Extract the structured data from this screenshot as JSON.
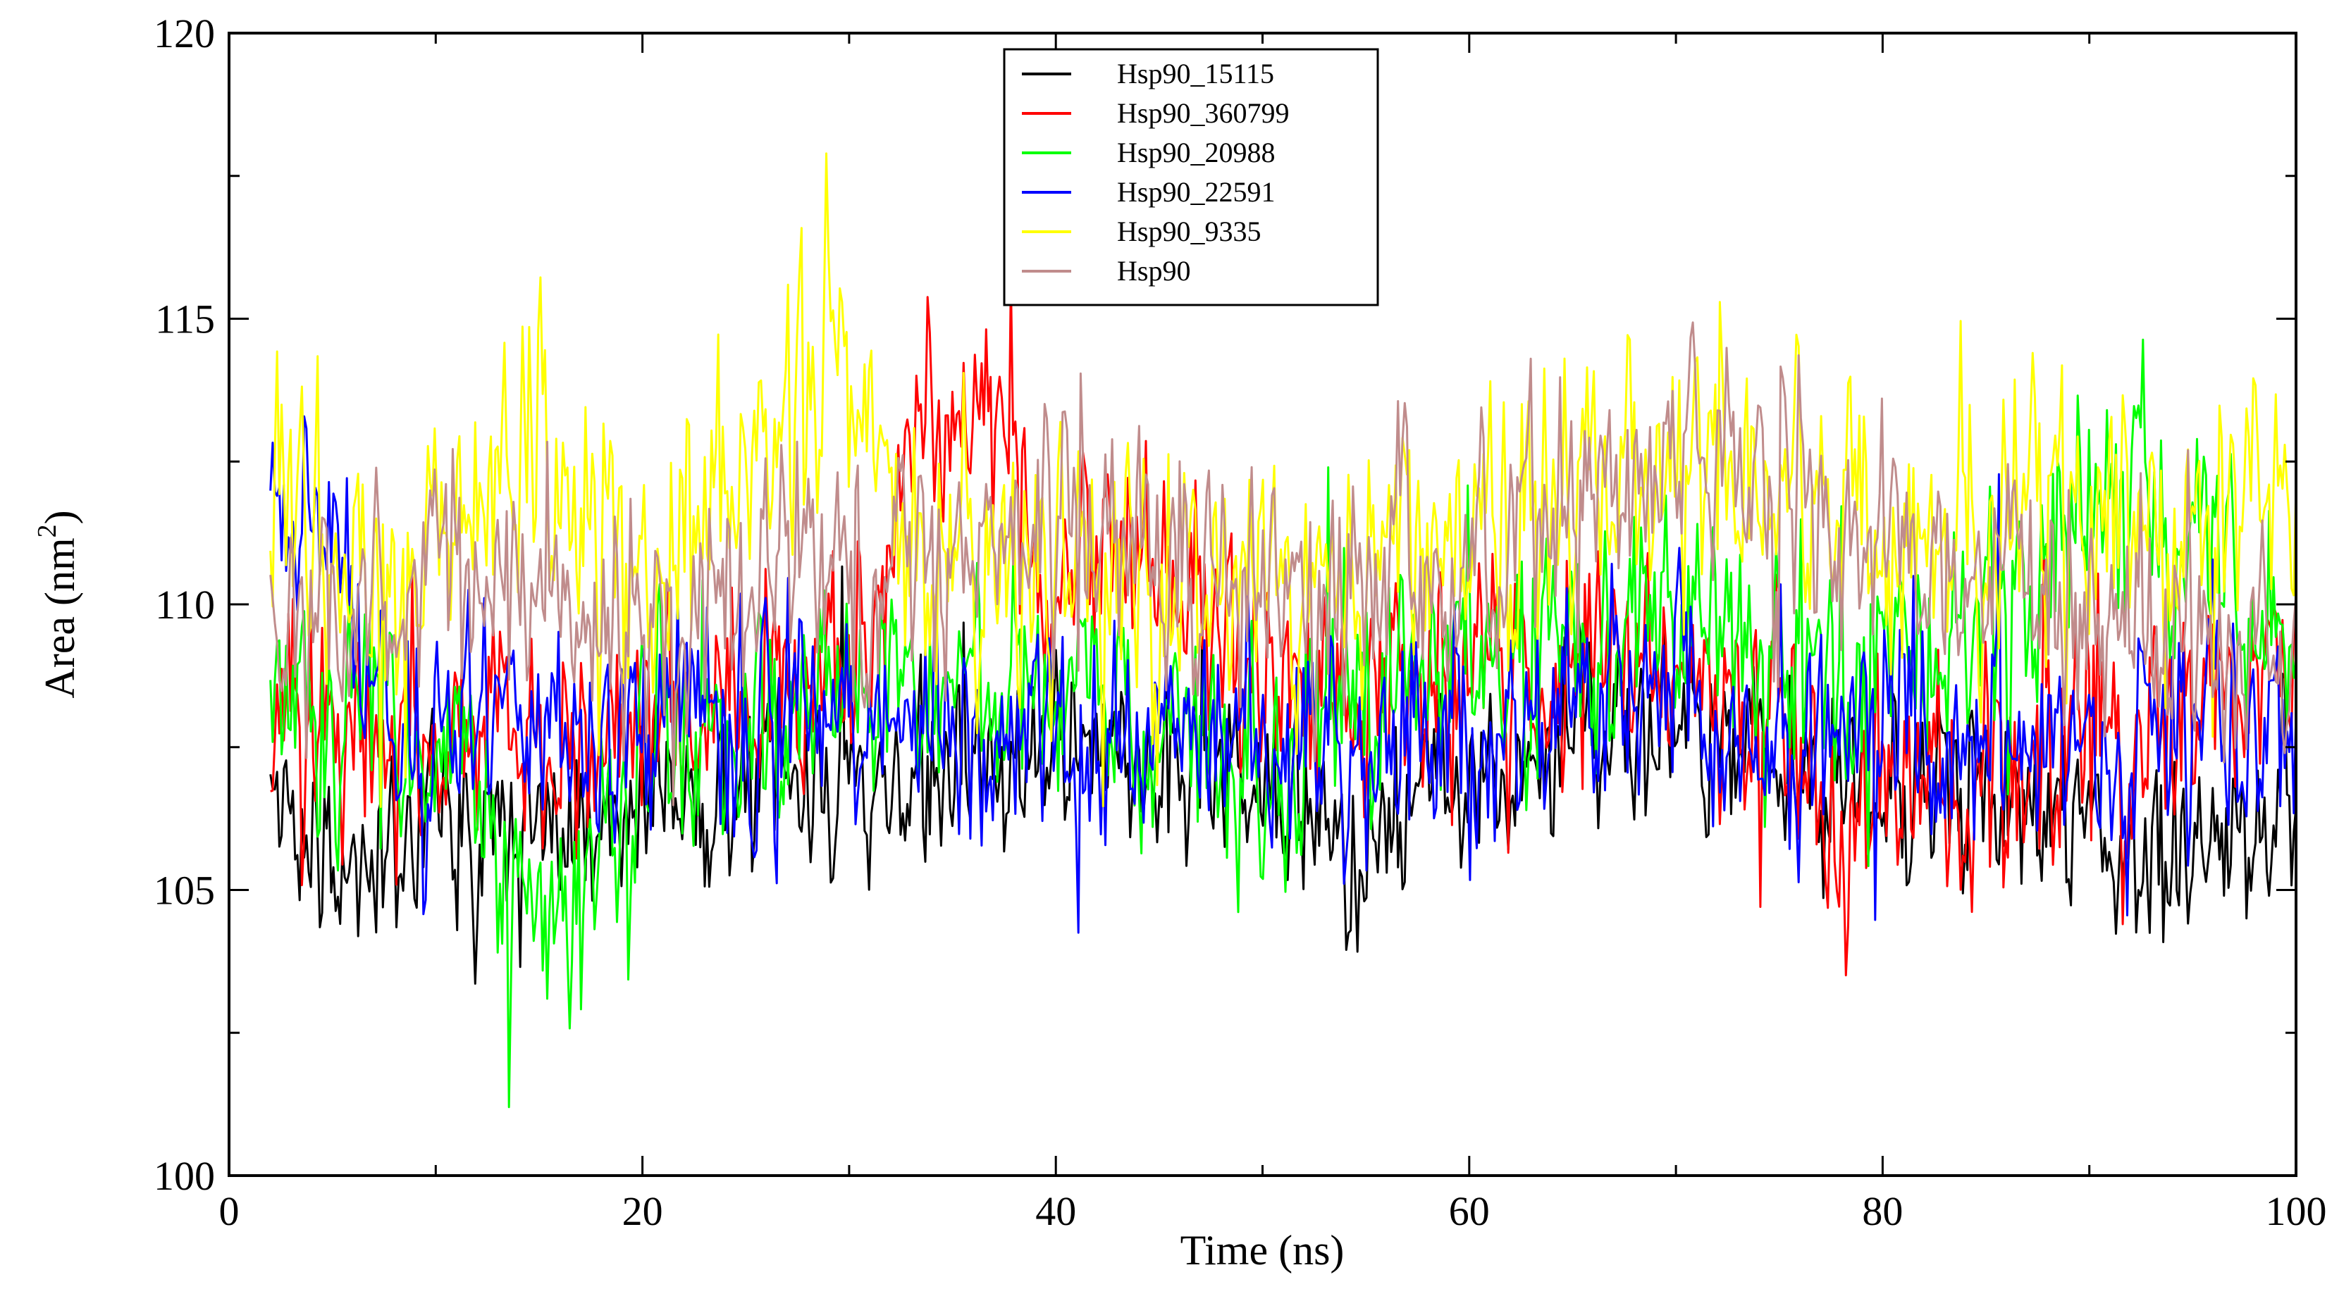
{
  "chart_data": {
    "type": "line",
    "title": "",
    "xlabel": "Time (ns)",
    "ylabel": "Area (nm",
    "ylabel_sup": "2",
    "ylabel_close": ")",
    "xlim": [
      0,
      100
    ],
    "ylim": [
      100,
      120
    ],
    "x_ticks": [
      0,
      20,
      40,
      60,
      80,
      100
    ],
    "y_ticks": [
      100,
      105,
      110,
      115,
      120
    ],
    "x_tick_labels": [
      "0",
      "20",
      "40",
      "60",
      "80",
      "100"
    ],
    "y_tick_labels": [
      "100",
      "105",
      "110",
      "115",
      "120"
    ],
    "x_start": 2,
    "samples": 900,
    "legend_position": "top-center",
    "series": [
      {
        "name": "Hsp90_15115",
        "color": "#000000",
        "seed": 11,
        "noise": 0.75,
        "anchors_x": [
          2,
          5,
          10,
          15,
          20,
          30,
          40,
          50,
          53,
          60,
          70,
          80,
          90,
          93,
          95,
          100
        ],
        "anchors_y": [
          106.8,
          105.3,
          106.4,
          106.6,
          106.6,
          106.9,
          107.4,
          106.9,
          105.6,
          107.1,
          107.9,
          106.6,
          106.5,
          105.2,
          105.6,
          106.8
        ]
      },
      {
        "name": "Hsp90_360799",
        "color": "#ff0000",
        "seed": 23,
        "noise": 0.9,
        "anchors_x": [
          2,
          10,
          20,
          30,
          33,
          36,
          38,
          40,
          45,
          50,
          60,
          70,
          75,
          78,
          85,
          90,
          100
        ],
        "anchors_y": [
          108.0,
          107.6,
          107.8,
          108.6,
          112.2,
          113.9,
          112.6,
          110.6,
          111.6,
          108.6,
          108.6,
          109.1,
          107.1,
          106.3,
          106.9,
          107.3,
          108.9
        ]
      },
      {
        "name": "Hsp90_20988",
        "color": "#00ff00",
        "seed": 37,
        "noise": 0.95,
        "anchors_x": [
          2,
          10,
          14,
          15,
          18,
          20,
          30,
          40,
          50,
          60,
          70,
          80,
          85,
          90,
          92,
          100
        ],
        "anchors_y": [
          108.6,
          107.6,
          104.6,
          103.6,
          105.6,
          107.1,
          108.6,
          108.6,
          107.6,
          109.1,
          109.6,
          108.6,
          109.6,
          111.6,
          112.1,
          109.1
        ]
      },
      {
        "name": "Hsp90_22591",
        "color": "#0000ff",
        "seed": 41,
        "noise": 0.9,
        "anchors_x": [
          2,
          4,
          8,
          15,
          20,
          30,
          40,
          50,
          60,
          70,
          72,
          80,
          90,
          100
        ],
        "anchors_y": [
          111.1,
          112.1,
          107.6,
          108.1,
          107.6,
          108.1,
          107.6,
          107.6,
          107.6,
          108.9,
          107.6,
          107.6,
          107.6,
          108.1
        ]
      },
      {
        "name": "Hsp90_9335",
        "color": "#ffff00",
        "seed": 53,
        "noise": 1.05,
        "anchors_x": [
          2,
          8,
          15,
          20,
          25,
          29,
          32,
          40,
          50,
          60,
          70,
          80,
          90,
          95,
          100
        ],
        "anchors_y": [
          112.1,
          110.6,
          112.6,
          110.6,
          112.1,
          114.6,
          111.1,
          110.6,
          110.6,
          111.1,
          112.6,
          111.1,
          110.6,
          111.6,
          112.1
        ]
      },
      {
        "name": "Hsp90",
        "color": "#c08c8c",
        "seed": 67,
        "noise": 0.95,
        "anchors_x": [
          2,
          10,
          20,
          30,
          40,
          50,
          60,
          70,
          80,
          90,
          94,
          100
        ],
        "anchors_y": [
          109.6,
          110.1,
          110.1,
          110.6,
          111.6,
          110.1,
          110.6,
          112.6,
          111.1,
          110.1,
          108.6,
          109.1
        ]
      }
    ]
  }
}
